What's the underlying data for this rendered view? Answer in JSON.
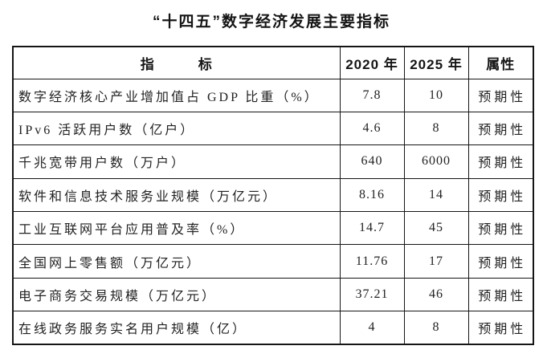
{
  "title": "“十四五”数字经济发展主要指标",
  "table": {
    "headers": {
      "indicator": "指　　　标",
      "y2020": "2020 年",
      "y2025": "2025 年",
      "attribute": "属性"
    },
    "rows": [
      {
        "indicator": "数字经济核心产业增加值占 GDP 比重（%）",
        "y2020": "7.8",
        "y2025": "10",
        "attribute": "预期性"
      },
      {
        "indicator": "IPv6 活跃用户数（亿户）",
        "y2020": "4.6",
        "y2025": "8",
        "attribute": "预期性"
      },
      {
        "indicator": "千兆宽带用户数（万户）",
        "y2020": "640",
        "y2025": "6000",
        "attribute": "预期性"
      },
      {
        "indicator": "软件和信息技术服务业规模（万亿元）",
        "y2020": "8.16",
        "y2025": "14",
        "attribute": "预期性"
      },
      {
        "indicator": "工业互联网平台应用普及率（%）",
        "y2020": "14.7",
        "y2025": "45",
        "attribute": "预期性"
      },
      {
        "indicator": "全国网上零售额（万亿元）",
        "y2020": "11.76",
        "y2025": "17",
        "attribute": "预期性"
      },
      {
        "indicator": "电子商务交易规模（万亿元）",
        "y2020": "37.21",
        "y2025": "46",
        "attribute": "预期性"
      },
      {
        "indicator": "在线政务服务实名用户规模（亿）",
        "y2020": "4",
        "y2025": "8",
        "attribute": "预期性"
      }
    ]
  }
}
